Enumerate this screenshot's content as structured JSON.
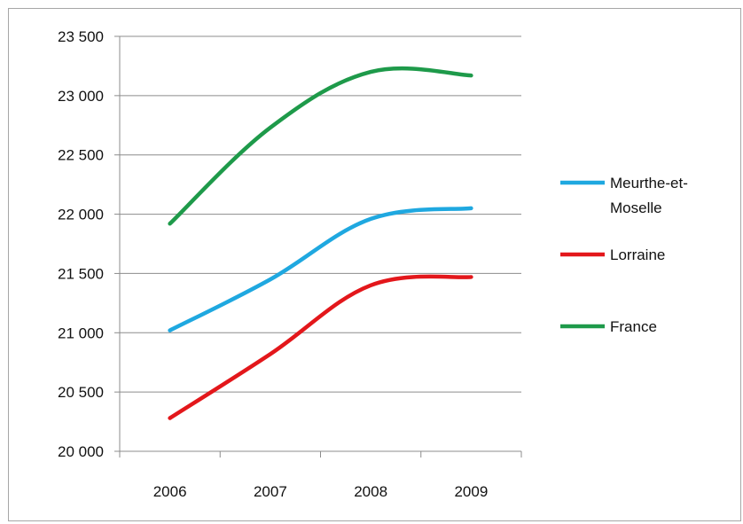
{
  "chart_data": {
    "type": "line",
    "title": "",
    "xlabel": "",
    "ylabel": "",
    "categories": [
      "2006",
      "2007",
      "2008",
      "2009"
    ],
    "ylim": [
      20000,
      23500
    ],
    "y_ticks": [
      20000,
      20500,
      21000,
      21500,
      22000,
      22500,
      23000,
      23500
    ],
    "y_tick_labels": [
      "20 000",
      "20 500",
      "21 000",
      "21 500",
      "22 000",
      "22 500",
      "23 000",
      "23 500"
    ],
    "grid": "horizontal",
    "legend_position": "right",
    "series": [
      {
        "name": "Meurthe-et-Moselle",
        "name_lines": [
          "Meurthe-et-",
          "Moselle"
        ],
        "color": "#1fa8e0",
        "values": [
          21020,
          21450,
          21960,
          22050
        ]
      },
      {
        "name": "Lorraine",
        "name_lines": [
          "Lorraine"
        ],
        "color": "#e3171b",
        "values": [
          20280,
          20820,
          21400,
          21470
        ]
      },
      {
        "name": "France",
        "name_lines": [
          "France"
        ],
        "color": "#1e9a4a",
        "values": [
          21920,
          22730,
          23200,
          23170
        ]
      }
    ]
  }
}
